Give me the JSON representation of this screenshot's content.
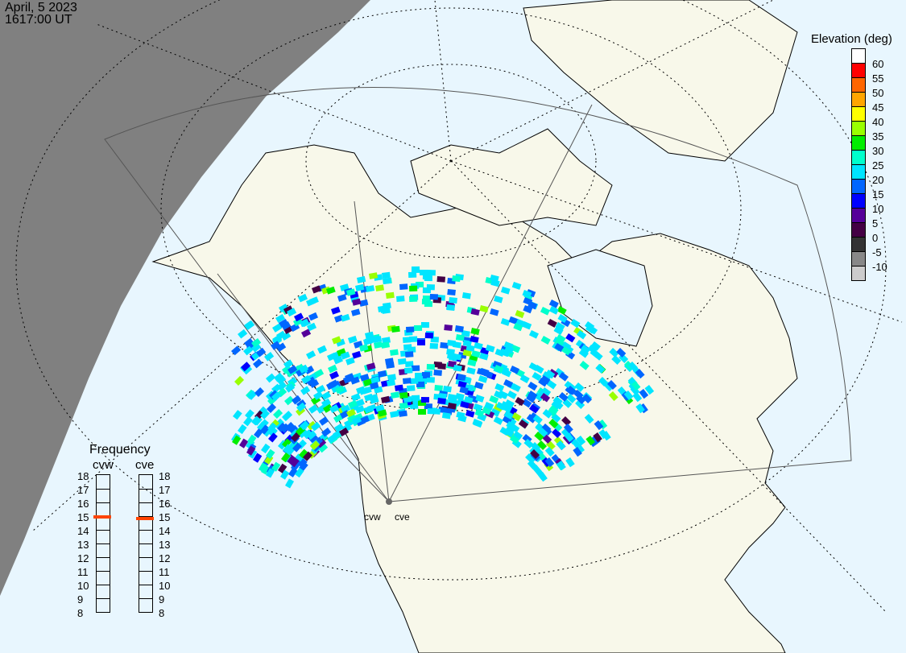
{
  "header": {
    "date": "April, 5 2023",
    "time": "1617:00 UT"
  },
  "legend": {
    "title": "Elevation (deg)",
    "levels": [
      {
        "label": "60",
        "color": "#ffffff"
      },
      {
        "label": "55",
        "color": "#ff0000"
      },
      {
        "label": "50",
        "color": "#ff6600"
      },
      {
        "label": "45",
        "color": "#ffa500"
      },
      {
        "label": "40",
        "color": "#ffff00"
      },
      {
        "label": "35",
        "color": "#99ff00"
      },
      {
        "label": "30",
        "color": "#00ee00"
      },
      {
        "label": "25",
        "color": "#00ffcc"
      },
      {
        "label": "20",
        "color": "#00e5ff"
      },
      {
        "label": "15",
        "color": "#0066ff"
      },
      {
        "label": "10",
        "color": "#0000ff"
      },
      {
        "label": "5",
        "color": "#550099"
      },
      {
        "label": "0",
        "color": "#440044"
      },
      {
        "label": "-5",
        "color": "#333333"
      },
      {
        "label": "-10",
        "color": "#888888"
      },
      {
        "label": "",
        "color": "#cccccc"
      }
    ]
  },
  "frequency": {
    "title": "Frequency",
    "ticks": [
      "18",
      "17",
      "16",
      "15",
      "14",
      "13",
      "12",
      "11",
      "10",
      "9",
      "8"
    ],
    "radars": [
      {
        "name": "cvw",
        "value_mhz": 14.95
      },
      {
        "name": "cve",
        "value_mhz": 14.85
      }
    ],
    "marker_color": "#ff4400"
  },
  "sites": [
    "cvw",
    "cve"
  ],
  "colors": {
    "ocean": "#e8f6fe",
    "land": "#f8f8ea",
    "night": "#808080"
  }
}
